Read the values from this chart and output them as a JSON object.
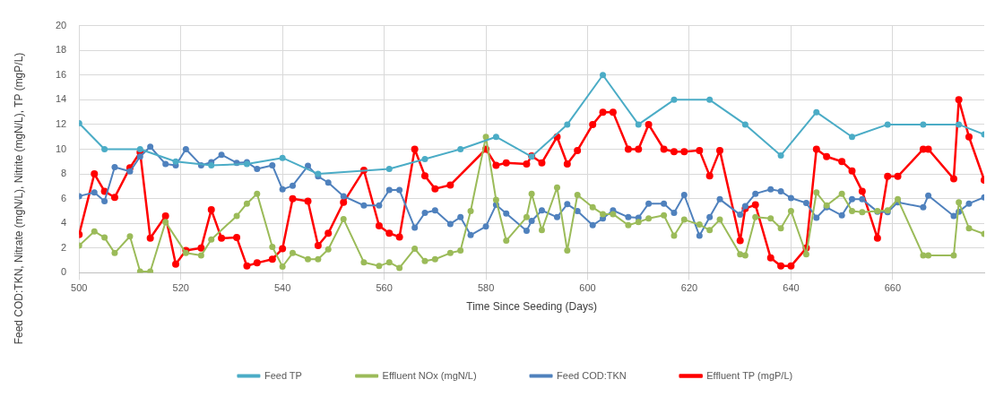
{
  "chart_data": {
    "type": "line",
    "xlabel": "Time Since Seeding (Days)",
    "ylabel": "Feed COD:TKN, Nitrate (mgN/L), Nitrite (mgN/L), TP (mgP/L)",
    "xlim": [
      500,
      678
    ],
    "xticks": [
      500,
      520,
      540,
      560,
      580,
      600,
      620,
      640,
      660
    ],
    "ylim": [
      0,
      20
    ],
    "yticks": [
      0,
      2,
      4,
      6,
      8,
      10,
      12,
      14,
      16,
      18,
      20
    ],
    "grid": true,
    "legend": "bottom",
    "marker": "circle",
    "line_style": "solid",
    "series": [
      {
        "name": "Feed TP",
        "color": "#4bacc6",
        "x": [
          500,
          505,
          512,
          519,
          526,
          533,
          540,
          547,
          561,
          568,
          575,
          582,
          589,
          596,
          603,
          610,
          617,
          624,
          631,
          638,
          645,
          652,
          659,
          666,
          673,
          678
        ],
        "values": [
          12.1,
          10,
          10,
          9,
          8.7,
          8.8,
          9.3,
          8,
          8.4,
          9.2,
          10,
          11,
          9.4,
          12,
          16,
          12,
          14,
          14,
          12,
          9.5,
          13,
          11,
          12,
          12,
          12,
          11.2
        ]
      },
      {
        "name": "Effluent NOx (mgN/L)",
        "color": "#9bbb59",
        "x": [
          500,
          503,
          505,
          507,
          510,
          512,
          514,
          517,
          521,
          524,
          526,
          531,
          533,
          535,
          538,
          540,
          542,
          545,
          547,
          549,
          552,
          556,
          559,
          561,
          563,
          566,
          568,
          570,
          573,
          575,
          577,
          580,
          582,
          584,
          588,
          589,
          591,
          594,
          596,
          598,
          601,
          603,
          605,
          608,
          610,
          612,
          615,
          617,
          619,
          622,
          624,
          626,
          630,
          631,
          633,
          636,
          638,
          640,
          643,
          645,
          647,
          650,
          652,
          654,
          657,
          659,
          661,
          666,
          667,
          672,
          673,
          675,
          678
        ],
        "values": [
          2.2,
          3.35,
          2.85,
          1.6,
          2.95,
          0.1,
          0.1,
          4.1,
          1.6,
          1.4,
          2.7,
          4.6,
          5.6,
          6.4,
          2.1,
          0.5,
          1.6,
          1.1,
          1.1,
          1.9,
          4.35,
          0.85,
          0.55,
          0.85,
          0.4,
          1.95,
          0.95,
          1.1,
          1.6,
          1.8,
          5,
          11,
          5.9,
          2.6,
          4.5,
          6.4,
          3.45,
          6.9,
          1.8,
          6.3,
          5.3,
          4.75,
          4.75,
          3.85,
          4.1,
          4.4,
          4.65,
          3,
          4.3,
          3.9,
          3.45,
          4.3,
          1.5,
          1.4,
          4.5,
          4.4,
          3.6,
          5,
          1.5,
          6.5,
          5.45,
          6.4,
          5,
          4.9,
          5,
          5.05,
          5.95,
          1.4,
          1.4,
          1.4,
          5.7,
          3.6,
          3.15
        ]
      },
      {
        "name": "Feed COD:TKN",
        "color": "#4f81bd",
        "x": [
          500,
          503,
          505,
          507,
          510,
          512,
          514,
          517,
          519,
          521,
          524,
          526,
          528,
          531,
          533,
          535,
          538,
          540,
          542,
          545,
          547,
          549,
          552,
          556,
          559,
          561,
          563,
          566,
          568,
          570,
          573,
          575,
          577,
          580,
          582,
          584,
          588,
          589,
          591,
          594,
          596,
          598,
          601,
          603,
          605,
          608,
          610,
          612,
          615,
          617,
          619,
          622,
          624,
          626,
          630,
          631,
          633,
          636,
          638,
          640,
          643,
          645,
          647,
          650,
          652,
          654,
          657,
          659,
          661,
          666,
          667,
          672,
          673,
          675,
          678
        ],
        "values": [
          6.2,
          6.5,
          5.8,
          8.55,
          8.2,
          9.4,
          10.2,
          8.8,
          8.7,
          10,
          8.7,
          8.95,
          9.55,
          8.9,
          8.95,
          8.4,
          8.7,
          6.75,
          7.05,
          8.65,
          7.8,
          7.3,
          6.2,
          5.45,
          5.45,
          6.7,
          6.7,
          3.65,
          4.85,
          5.05,
          3.95,
          4.5,
          3.05,
          3.75,
          5.5,
          4.8,
          3.4,
          4.2,
          5.05,
          4.5,
          5.55,
          5,
          3.85,
          4.4,
          5.05,
          4.5,
          4.45,
          5.6,
          5.6,
          4.85,
          6.3,
          3,
          4.5,
          5.95,
          4.7,
          5.4,
          6.4,
          6.75,
          6.6,
          6.05,
          5.65,
          4.45,
          5.3,
          4.65,
          5.95,
          5.95,
          4.95,
          4.9,
          5.7,
          5.3,
          6.25,
          4.6,
          4.95,
          5.6,
          6.1
        ]
      },
      {
        "name": "Effluent TP (mgP/L)",
        "color": "#ff0000",
        "x": [
          500,
          503,
          505,
          507,
          510,
          512,
          514,
          517,
          519,
          521,
          524,
          526,
          528,
          531,
          533,
          535,
          538,
          540,
          542,
          545,
          547,
          549,
          552,
          556,
          559,
          561,
          563,
          566,
          568,
          570,
          573,
          580,
          582,
          584,
          588,
          589,
          591,
          594,
          596,
          598,
          601,
          603,
          605,
          608,
          610,
          612,
          615,
          617,
          619,
          622,
          624,
          626,
          630,
          631,
          633,
          636,
          638,
          640,
          643,
          645,
          647,
          650,
          652,
          654,
          657,
          659,
          661,
          666,
          667,
          672,
          673,
          675,
          678
        ],
        "values": [
          3.1,
          8,
          6.6,
          6.1,
          8.5,
          9.75,
          2.8,
          4.6,
          0.7,
          1.8,
          2,
          5.1,
          2.8,
          2.85,
          0.55,
          0.8,
          1.1,
          1.95,
          6,
          5.8,
          2.2,
          3.2,
          5.7,
          8.3,
          3.8,
          3.2,
          2.9,
          10,
          7.85,
          6.8,
          7.1,
          10,
          8.7,
          8.9,
          8.8,
          9.45,
          8.9,
          11,
          8.8,
          9.9,
          12,
          13,
          13,
          10,
          10,
          12,
          10,
          9.8,
          9.8,
          9.9,
          7.85,
          9.9,
          2.6,
          5.2,
          5.5,
          1.2,
          0.55,
          0.55,
          2,
          10,
          9.4,
          9,
          8.25,
          6.6,
          2.8,
          7.8,
          7.8,
          10,
          10,
          7.6,
          14,
          11,
          7.5
        ]
      }
    ]
  }
}
